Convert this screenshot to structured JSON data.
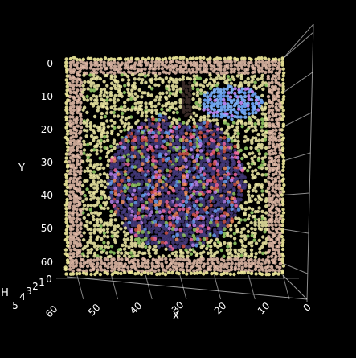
{
  "chart_data": {
    "type": "scatter",
    "projection": "3d",
    "description_of_content": "",
    "xlabel": "X",
    "ylabel": "Y",
    "zlabel": "H",
    "x_ticks": [
      "0",
      "10",
      "20",
      "30",
      "40",
      "50",
      "60"
    ],
    "y_ticks": [
      "0",
      "10",
      "20",
      "30",
      "40",
      "50",
      "60"
    ],
    "z_ticks": [
      "0",
      "1",
      "2",
      "3",
      "4",
      "5"
    ],
    "x_range": [
      0,
      63
    ],
    "y_range": [
      0,
      63
    ],
    "z_range": [
      0,
      5
    ],
    "grid": true,
    "background_color": "#000000",
    "grid_color": "#ffffff",
    "text_color": "#ffffff",
    "point_groups": [
      {
        "label": "",
        "color": "#e9c1ad",
        "region": "frame",
        "x_range": [
          0,
          63
        ],
        "y_range": [
          0,
          63
        ]
      },
      {
        "label": "",
        "color": "#f2ec9c",
        "region": "border-ring",
        "x_range": [
          0,
          63
        ],
        "y_range": [
          0,
          63
        ]
      },
      {
        "label": "",
        "color": "#f3efa8",
        "region": "background",
        "x_range": [
          5,
          58
        ],
        "y_range": [
          5,
          58
        ]
      },
      {
        "label": "",
        "color": "#4a3f86",
        "region": "apple-body",
        "center": [
          31,
          36
        ],
        "radius": [
          20,
          20
        ]
      },
      {
        "label": "",
        "color": "#7fb7ff",
        "region": "leaf",
        "center": [
          15,
          13
        ],
        "radius": [
          9,
          5
        ]
      },
      {
        "label": "",
        "color": "#3d2e2a",
        "region": "stem",
        "center": [
          28,
          12
        ],
        "radius": [
          1.5,
          5
        ]
      }
    ],
    "accent_colors": [
      "#ff6fae",
      "#9bd36a",
      "#e05a4f",
      "#c58cff",
      "#6ea8ff",
      "#ff9966"
    ]
  }
}
